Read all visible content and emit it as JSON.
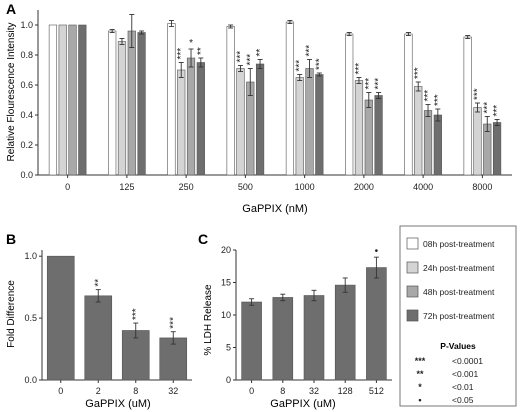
{
  "colors": {
    "s08": "#ffffff",
    "s24": "#d4d4d4",
    "s48": "#a8a8a8",
    "s72": "#6e6e6e",
    "single": "#6e6e6e",
    "axis": "#333333",
    "edge": "#555555"
  },
  "chart_data": [
    {
      "panel_label": "A",
      "type": "bar",
      "xlabel": "GaPPIX (nM)",
      "ylabel": "Relative Flourescence Intensity",
      "ylim": [
        0,
        1.1
      ],
      "yticks": [
        "0.0",
        "0.2",
        "0.4",
        "0.6",
        "0.8",
        "1.0"
      ],
      "categories": [
        "0",
        "125",
        "250",
        "500",
        "1000",
        "2000",
        "4000",
        "8000"
      ],
      "series": [
        {
          "name": "08h post-treatment",
          "values": [
            1.0,
            0.96,
            1.01,
            0.99,
            1.02,
            0.94,
            0.94,
            0.92
          ],
          "errors": [
            0,
            0.01,
            0.02,
            0.01,
            0.01,
            0.01,
            0.01,
            0.01
          ],
          "sig": [
            "",
            "",
            "",
            "",
            "",
            "",
            "",
            ""
          ]
        },
        {
          "name": "24h post-treatment",
          "values": [
            1.0,
            0.89,
            0.7,
            0.71,
            0.65,
            0.63,
            0.59,
            0.45
          ],
          "errors": [
            0,
            0.02,
            0.05,
            0.02,
            0.02,
            0.02,
            0.03,
            0.03
          ],
          "sig": [
            "",
            "",
            "***",
            "***",
            "***",
            "***",
            "***",
            "***"
          ]
        },
        {
          "name": "48h post-treatment",
          "values": [
            1.0,
            0.96,
            0.78,
            0.62,
            0.71,
            0.5,
            0.43,
            0.34
          ],
          "errors": [
            0,
            0.11,
            0.06,
            0.09,
            0.06,
            0.05,
            0.04,
            0.05
          ],
          "sig": [
            "",
            "",
            "*",
            "***",
            "***",
            "***",
            "***",
            "***"
          ]
        },
        {
          "name": "72h post-treatment",
          "values": [
            1.0,
            0.95,
            0.75,
            0.74,
            0.67,
            0.53,
            0.4,
            0.35
          ],
          "errors": [
            0,
            0.01,
            0.03,
            0.03,
            0.01,
            0.02,
            0.04,
            0.02
          ],
          "sig": [
            "",
            "",
            "**",
            "**",
            "***",
            "***",
            "***",
            "***"
          ]
        }
      ]
    },
    {
      "panel_label": "B",
      "type": "bar",
      "xlabel": "GaPPIX (uM)",
      "ylabel": "Fold Difference",
      "ylim": [
        0,
        1.05
      ],
      "yticks": [
        "0.0",
        "0.5",
        "1.0"
      ],
      "categories": [
        "0",
        "2",
        "8",
        "32"
      ],
      "values": [
        1.0,
        0.68,
        0.4,
        0.34
      ],
      "errors": [
        0,
        0.05,
        0.06,
        0.05
      ],
      "sig": [
        "",
        "**",
        "***",
        "***"
      ]
    },
    {
      "panel_label": "C",
      "type": "bar",
      "xlabel": "GaPPIX (uM)",
      "ylabel": "% LDH Release",
      "ylim": [
        0,
        20
      ],
      "yticks": [
        "0",
        "5",
        "10",
        "15",
        "20"
      ],
      "categories": [
        "0",
        "8",
        "32",
        "128",
        "512"
      ],
      "values": [
        12.0,
        12.7,
        13.0,
        14.6,
        17.3
      ],
      "errors": [
        0.5,
        0.5,
        0.8,
        1.1,
        1.6
      ],
      "sig": [
        "",
        "",
        "",
        "",
        "•"
      ]
    }
  ],
  "legend": {
    "items": [
      "08h post-treatment",
      "24h post-treatment",
      "48h post-treatment",
      "72h post-treatment"
    ],
    "pvalue_title": "P-Values",
    "pvalues": [
      {
        "sym": "***",
        "label": "<0.0001"
      },
      {
        "sym": "**",
        "label": "<0.001"
      },
      {
        "sym": "*",
        "label": "<0.01"
      },
      {
        "sym": "•",
        "label": "<0.05"
      }
    ]
  }
}
